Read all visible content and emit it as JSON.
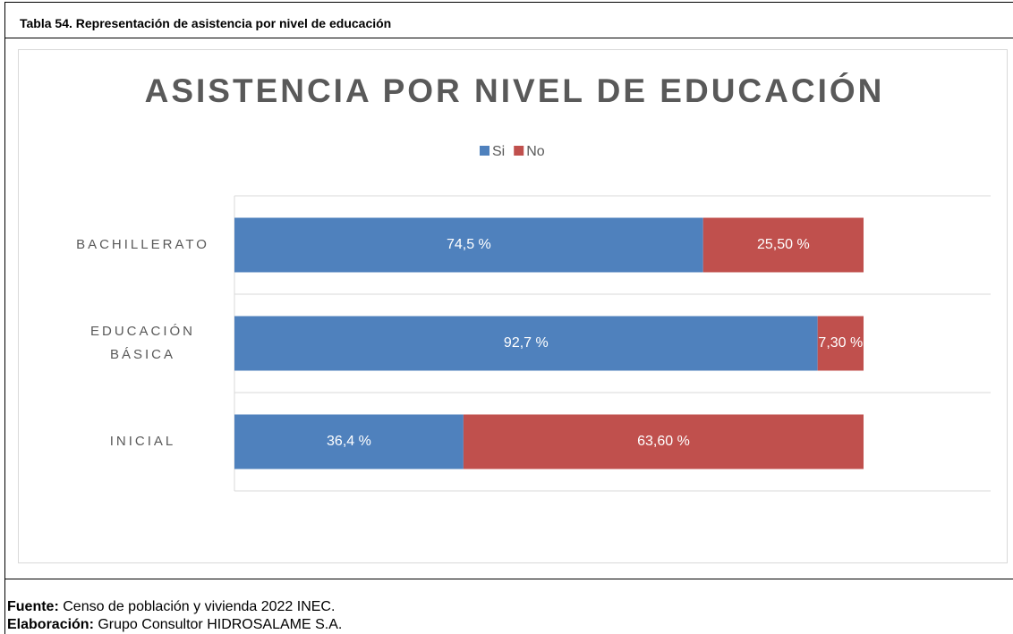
{
  "caption": "Tabla 54. Representación de asistencia por nivel de educación",
  "source_label": "Fuente:",
  "source_text": "Censo de población y vivienda 2022 INEC.",
  "credit_label": "Elaboración:",
  "credit_text": "Grupo Consultor HIDROSALAME S.A.",
  "chart_data": {
    "type": "stacked_barh",
    "title": "ASISTENCIA POR NIVEL DE EDUCACIÓN",
    "categories": [
      "BACHILLERATO",
      "EDUCACIÓN BÁSICA",
      "INICIAL"
    ],
    "series": [
      {
        "name": "Si",
        "color": "#4f81bd",
        "values": [
          74.5,
          92.7,
          36.4
        ],
        "value_labels": [
          "74,5 %",
          "92,7 %",
          "36,4 %"
        ]
      },
      {
        "name": "No",
        "color": "#c0504d",
        "values": [
          25.5,
          7.3,
          63.6
        ],
        "value_labels": [
          "25,50 %",
          "7,30 %",
          "63,60 %"
        ]
      }
    ],
    "legend": "top",
    "grid": true
  }
}
